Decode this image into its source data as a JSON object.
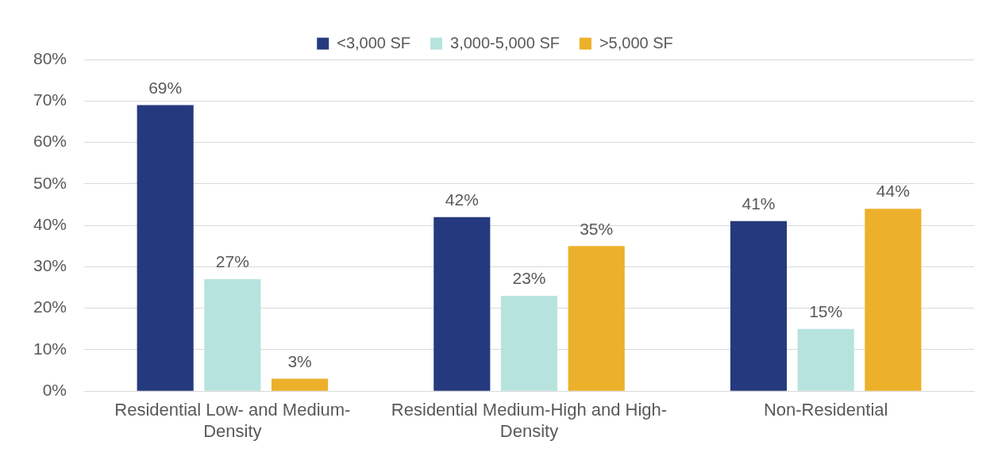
{
  "chart_data": {
    "type": "bar",
    "categories": [
      "Residential Low- and Medium-Density",
      "Residential Medium-High and High-Density",
      "Non-Residential"
    ],
    "series": [
      {
        "name": "<3,000 SF",
        "color": "#253a7e",
        "values": [
          69,
          42,
          41
        ],
        "value_labels": [
          "69%",
          "42%",
          "41%"
        ]
      },
      {
        "name": "3,000-5,000 SF",
        "color": "#b7e3df",
        "values": [
          27,
          23,
          15
        ],
        "value_labels": [
          "27%",
          "23%",
          "15%"
        ]
      },
      {
        "name": ">5,000 SF",
        "color": "#ecb02a",
        "values": [
          3,
          35,
          44
        ],
        "value_labels": [
          "3%",
          "35%",
          "44%"
        ]
      }
    ],
    "ylim": [
      0,
      80
    ],
    "yticks": [
      {
        "value": 0,
        "label": "0%"
      },
      {
        "value": 10,
        "label": "10%"
      },
      {
        "value": 20,
        "label": "20%"
      },
      {
        "value": 30,
        "label": "30%"
      },
      {
        "value": 40,
        "label": "40%"
      },
      {
        "value": 50,
        "label": "50%"
      },
      {
        "value": 60,
        "label": "60%"
      },
      {
        "value": 70,
        "label": "70%"
      },
      {
        "value": 80,
        "label": "80%"
      }
    ],
    "grid": "y",
    "legend": "top"
  }
}
